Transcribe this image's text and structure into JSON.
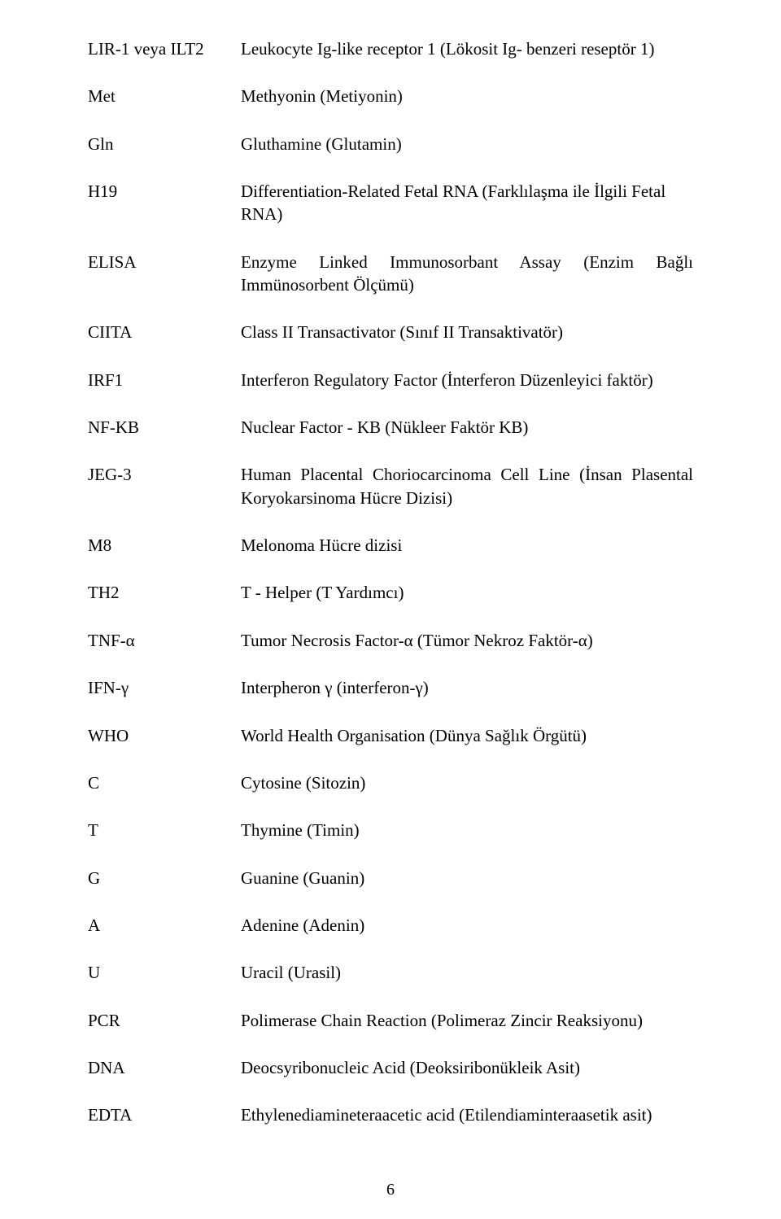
{
  "rows": [
    {
      "abbr": "LIR-1 veya ILT2",
      "def": "Leukocyte Ig-like receptor 1 (Lökosit Ig- benzeri reseptör 1)"
    },
    {
      "abbr": "Met",
      "def": "Methyonin (Metiyonin)"
    },
    {
      "abbr": "Gln",
      "def": "Gluthamine (Glutamin)"
    },
    {
      "abbr": "H19",
      "def": "Differentiation-Related Fetal RNA (Farklılaşma ile İlgili Fetal RNA)",
      "wrap": true
    },
    {
      "abbr": "ELISA",
      "def": "Enzyme Linked Immunosorbant Assay (Enzim Bağlı Immünosorbent Ölçümü)",
      "wrap": true,
      "justify": true
    },
    {
      "abbr": "CIITA",
      "def": "Class II Transactivator (Sınıf II Transaktivatör)"
    },
    {
      "abbr": "IRF1",
      "def": "Interferon Regulatory Factor (İnterferon Düzenleyici faktör)"
    },
    {
      "abbr": "NF-KB",
      "def": "Nuclear Factor - KB (Nükleer Faktör KB)"
    },
    {
      "abbr": "JEG-3",
      "def": "Human Placental Choriocarcinoma Cell Line (İnsan Plasental Koryokarsinoma Hücre Dizisi)",
      "wrap": true,
      "justify": true
    },
    {
      "abbr": "M8",
      "def": "Melonoma Hücre dizisi"
    },
    {
      "abbr": "TH2",
      "def": "T - Helper (T Yardımcı)"
    },
    {
      "abbr": "TNF-α",
      "def": "Tumor  Necrosis Factor-α (Tümor Nekroz Faktör-α)"
    },
    {
      "abbr": "IFN-γ",
      "def": "Interpheron   γ  (interferon-γ)"
    },
    {
      "abbr": "WHO",
      "def": "World Health Organisation (Dünya Sağlık Örgütü)"
    },
    {
      "abbr": "C",
      "def": "Cytosine (Sitozin)"
    },
    {
      "abbr": "T",
      "def": "Thymine (Timin)"
    },
    {
      "abbr": "G",
      "def": "Guanine (Guanin)"
    },
    {
      "abbr": "A",
      "def": "Adenine (Adenin)"
    },
    {
      "abbr": "U",
      "def": "Uracil  (Urasil)"
    },
    {
      "abbr": "PCR",
      "def": "Polimerase Chain Reaction (Polimeraz Zincir Reaksiyonu)"
    },
    {
      "abbr": "DNA",
      "def": "Deocsyribonucleic Acid (Deoksiribonükleik Asit)"
    },
    {
      "abbr": "EDTA",
      "def": "Ethylenediamineteraacetic acid (Etilendiaminteraasetik asit)"
    }
  ],
  "page_number": "6"
}
